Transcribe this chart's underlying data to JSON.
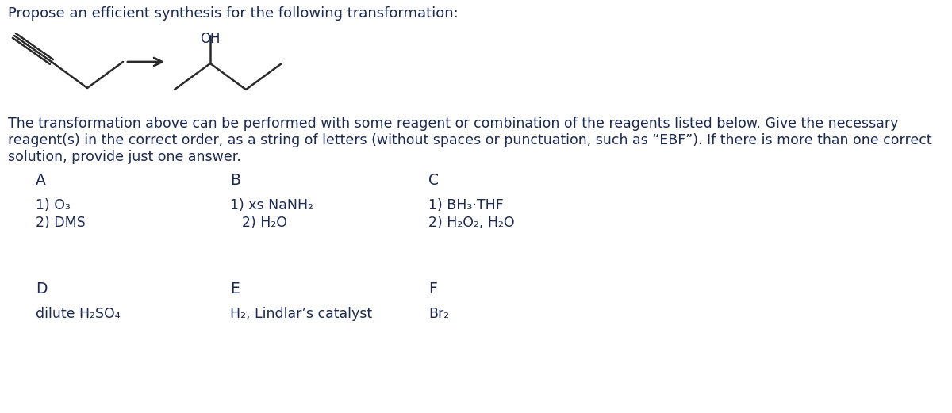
{
  "title_text": "Propose an efficient synthesis for the following transformation:",
  "body_line1": "The transformation above can be performed with some reagent or combination of the reagents listed below. Give the necessary",
  "body_line2": "reagent(s) in the correct order, as a string of letters (without spaces or punctuation, such as “EBF”). If there is more than one correct",
  "body_line3": "solution, provide just one answer.",
  "reagent_A_line1": "1) O₃",
  "reagent_A_line2": "2) DMS",
  "reagent_B_line1": "1) xs NaNH₂",
  "reagent_B_line2": "2) H₂O",
  "reagent_C_line1": "1) BH₃·THF",
  "reagent_C_line2": "2) H₂O₂, H₂O",
  "reagent_D_line1": "dilute H₂SO₄",
  "reagent_E_line1": "H₂, Lindlar’s catalyst",
  "reagent_F_line1": "Br₂",
  "bg_color": "#ffffff",
  "text_color": "#1c2951",
  "mol_color": "#2a2a2a",
  "font_size_title": 13.0,
  "font_size_body": 12.5,
  "font_size_reagent": 12.5,
  "font_size_header": 13.5
}
